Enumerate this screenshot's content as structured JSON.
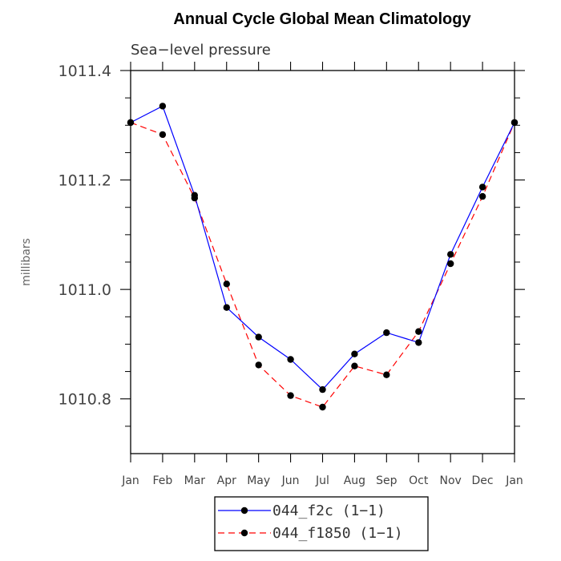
{
  "chart_data": {
    "type": "line",
    "title": "Annual Cycle Global Mean Climatology",
    "subtitle": "Sea−level pressure",
    "ylabel": "millibars",
    "xlabel": "",
    "categories": [
      "Jan",
      "Feb",
      "Mar",
      "Apr",
      "May",
      "Jun",
      "Jul",
      "Aug",
      "Sep",
      "Oct",
      "Nov",
      "Dec",
      "Jan"
    ],
    "ylim": [
      1010.7,
      1011.4
    ],
    "yticks": [
      1010.8,
      1011.0,
      1011.2,
      1011.4
    ],
    "ytick_labels": [
      "1010.8",
      "1011.0",
      "1011.2",
      "1011.4"
    ],
    "grid": false,
    "legend_position": "bottom-center",
    "series": [
      {
        "name": "044_f2c (1−1)",
        "color": "#0000ff",
        "style": "solid",
        "values": [
          1011.305,
          1011.335,
          1011.172,
          1010.967,
          1010.913,
          1010.872,
          1010.817,
          1010.882,
          1010.921,
          1010.903,
          1011.064,
          1011.187,
          1011.305
        ]
      },
      {
        "name": "044_f1850 (1−1)",
        "color": "#ff0000",
        "style": "dashed",
        "values": [
          1011.305,
          1011.283,
          1011.167,
          1011.01,
          1010.862,
          1010.806,
          1010.785,
          1010.86,
          1010.844,
          1010.923,
          1011.047,
          1011.17,
          1011.305
        ]
      }
    ]
  }
}
